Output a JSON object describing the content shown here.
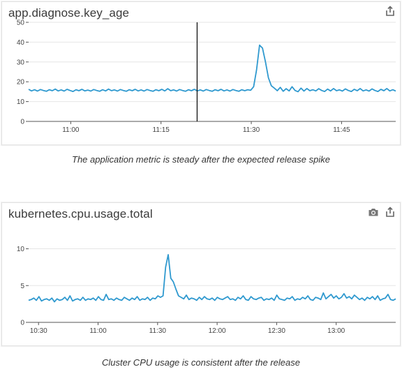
{
  "panels": [
    {
      "title": "app.diagnose.key_age",
      "caption": "The application metric is steady after the expected release spike",
      "tools": [
        "share-icon"
      ],
      "marker_time": "11:21",
      "chart_data": {
        "type": "line",
        "x_start": "10:53",
        "x_end": "11:54",
        "xticks": [
          "11:00",
          "11:15",
          "11:30",
          "11:45"
        ],
        "yticks": [
          0,
          10,
          20,
          30,
          40,
          50
        ],
        "ylim": [
          0,
          50
        ],
        "color": "#2f99cf",
        "series": [
          {
            "values": [
              16.2,
              15.4,
              16.0,
              15.3,
              16.1,
              15.6,
              15.2,
              16.0,
              15.5,
              16.3,
              15.4,
              15.9,
              15.3,
              16.2,
              15.6,
              15.1,
              16.0,
              15.5,
              16.2,
              15.4,
              15.8,
              15.3,
              16.1,
              15.6,
              15.2,
              16.0,
              15.4,
              16.3,
              15.5,
              15.9,
              15.3,
              16.1,
              15.6,
              15.2,
              16.0,
              15.5,
              16.2,
              15.4,
              15.9,
              15.3,
              16.1,
              15.6,
              15.2,
              16.0,
              15.5,
              16.2,
              15.4,
              16.5,
              15.5,
              15.9,
              15.3,
              16.1,
              15.6,
              15.2,
              16.0,
              15.5,
              16.2,
              15.4,
              15.9,
              15.3,
              16.1,
              15.6,
              15.2,
              16.0,
              15.5,
              16.2,
              15.4,
              15.9,
              15.3,
              16.1,
              15.6,
              15.2,
              16.0,
              15.5,
              16.0,
              15.7,
              17.5,
              26.0,
              38.5,
              37.0,
              30.0,
              22.0,
              18.0,
              16.8,
              15.5,
              17.2,
              15.2,
              16.5,
              15.4,
              17.5,
              15.6,
              15.0,
              16.8,
              15.3,
              16.6,
              15.5,
              16.0,
              15.4,
              16.5,
              15.6,
              15.1,
              16.3,
              15.4,
              16.6,
              15.5,
              15.9,
              15.3,
              16.4,
              15.6,
              15.1,
              16.2,
              15.5,
              16.6,
              15.4,
              15.9,
              15.3,
              16.4,
              15.6,
              15.1,
              16.2,
              15.5,
              16.6,
              15.4,
              16.0,
              15.3
            ]
          }
        ]
      }
    },
    {
      "title": "kubernetes.cpu.usage.total",
      "caption": "Cluster CPU usage is consistent after the release",
      "tools": [
        "camera-icon",
        "share-icon"
      ],
      "chart_data": {
        "type": "line",
        "x_start": "10:25",
        "x_end": "13:30",
        "xticks": [
          "10:30",
          "11:00",
          "11:30",
          "12:00",
          "12:30",
          "13:00"
        ],
        "yticks": [
          0,
          5,
          10
        ],
        "ylim": [
          0,
          11
        ],
        "color": "#2f99cf",
        "series": [
          {
            "values": [
              3.0,
              3.1,
              3.3,
              3.0,
              3.5,
              2.9,
              3.1,
              3.2,
              3.0,
              3.3,
              2.8,
              3.2,
              3.0,
              3.1,
              3.4,
              3.0,
              3.6,
              2.9,
              3.1,
              3.2,
              3.0,
              3.4,
              3.0,
              3.2,
              3.1,
              3.3,
              3.0,
              3.5,
              3.1,
              3.0,
              3.8,
              3.1,
              3.2,
              3.0,
              3.3,
              3.1,
              3.0,
              3.4,
              3.2,
              3.0,
              3.3,
              3.1,
              3.5,
              3.0,
              3.2,
              3.1,
              3.4,
              3.0,
              3.3,
              3.2,
              3.6,
              3.4,
              3.6,
              7.5,
              9.2,
              6.0,
              5.5,
              4.5,
              3.6,
              3.4,
              3.2,
              3.7,
              3.1,
              3.3,
              3.2,
              3.0,
              3.4,
              3.1,
              3.5,
              3.2,
              3.1,
              3.3,
              3.0,
              3.4,
              3.2,
              3.1,
              3.3,
              3.5,
              3.1,
              3.2,
              3.0,
              3.4,
              3.2,
              3.6,
              3.1,
              3.0,
              3.5,
              3.2,
              3.1,
              3.3,
              3.4,
              3.0,
              3.2,
              3.1,
              3.3,
              3.0,
              3.7,
              3.2,
              3.1,
              3.0,
              3.3,
              3.2,
              3.5,
              3.0,
              3.2,
              3.1,
              3.4,
              3.2,
              3.6,
              3.1,
              3.0,
              3.4,
              3.3,
              3.1,
              4.0,
              3.2,
              3.5,
              3.8,
              3.3,
              3.6,
              3.2,
              3.4,
              3.9,
              3.3,
              3.5,
              3.2,
              3.7,
              3.4,
              3.1,
              3.3,
              3.0,
              3.4,
              3.2,
              3.5,
              3.1,
              3.6,
              3.0,
              3.2,
              3.3,
              3.8,
              3.1,
              3.0,
              3.2
            ]
          }
        ]
      }
    }
  ]
}
